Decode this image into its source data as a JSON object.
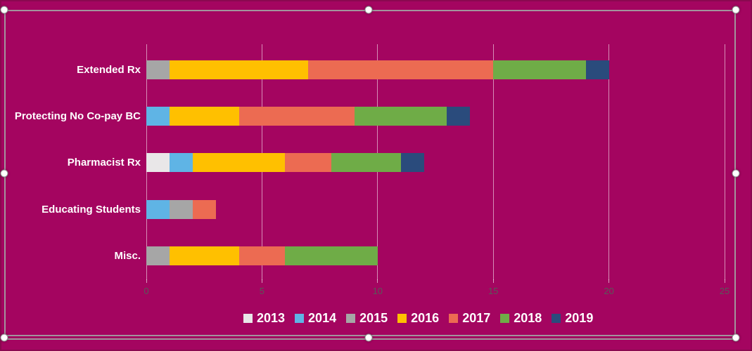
{
  "canvas": {
    "background_color": "#A40560",
    "edge_color": "#8A0950"
  },
  "selection": {
    "border_color": "#A2949C",
    "handle_color": "#FFFFFF",
    "handles": [
      "top-left",
      "top-center",
      "top-right",
      "middle-left",
      "middle-right",
      "bottom-left",
      "bottom-center",
      "bottom-right"
    ]
  },
  "chart_data": {
    "type": "bar",
    "orientation": "horizontal",
    "stacked": true,
    "title": "",
    "categories": [
      "Extended Rx",
      "Protecting No Co-pay BC",
      "Pharmacist Rx",
      "Educating Students",
      "Misc."
    ],
    "series": [
      {
        "name": "2013",
        "color": "#E9E7E8",
        "values": [
          0,
          0,
          1,
          0,
          0
        ]
      },
      {
        "name": "2014",
        "color": "#5FB4E5",
        "values": [
          0,
          1,
          1,
          1,
          0
        ]
      },
      {
        "name": "2015",
        "color": "#A6A6A6",
        "values": [
          1,
          0,
          0,
          1,
          1
        ]
      },
      {
        "name": "2016",
        "color": "#FFC000",
        "values": [
          6,
          3,
          4,
          0,
          3
        ]
      },
      {
        "name": "2017",
        "color": "#EC6B52",
        "values": [
          8,
          5,
          2,
          1,
          2
        ]
      },
      {
        "name": "2018",
        "color": "#6FAC47",
        "values": [
          4,
          4,
          3,
          0,
          4
        ]
      },
      {
        "name": "2019",
        "color": "#2A4B7C",
        "values": [
          1,
          1,
          1,
          0,
          0
        ]
      }
    ],
    "category_totals": [
      20,
      14,
      12,
      3,
      10
    ],
    "x_ticks": [
      0,
      5,
      10,
      15,
      20,
      25
    ],
    "xlim": [
      0,
      25
    ],
    "xlabel": "",
    "ylabel": "",
    "grid": true,
    "legend_position": "bottom",
    "colors": {
      "gridline": "rgba(255,255,255,0.55)",
      "axis_tick_label": "#595959",
      "category_label": "#FFFFFF",
      "legend_text": "#FFFFFF"
    }
  }
}
